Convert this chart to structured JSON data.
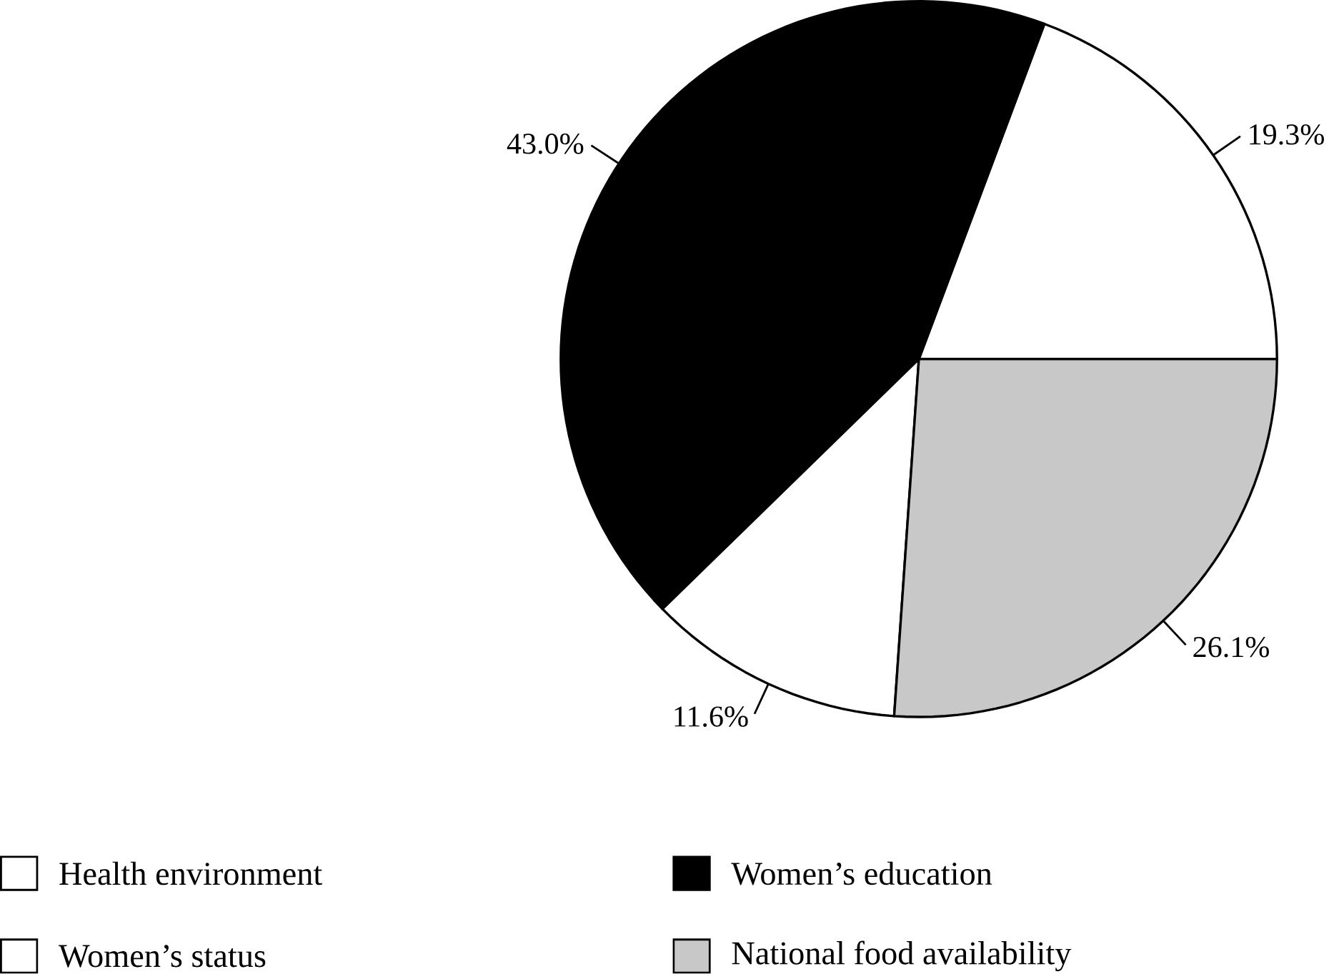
{
  "chart_data": {
    "type": "pie",
    "categories": [
      "Health environment",
      "Women’s education",
      "Women’s status",
      "National food availability"
    ],
    "values": [
      19.3,
      43.0,
      11.6,
      26.1
    ],
    "colors": [
      "#ffffff",
      "#000000",
      "#ffffff",
      "#c8c8c8"
    ],
    "value_labels": [
      "19.3%",
      "43.0%",
      "11.6%",
      "26.1%"
    ],
    "legend": "bottom"
  }
}
